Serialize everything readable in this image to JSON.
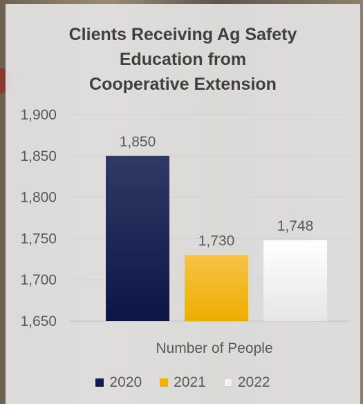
{
  "chart_data": {
    "type": "bar",
    "title_lines": [
      "Clients Receiving Ag Safety",
      "Education from",
      "Cooperative Extension"
    ],
    "categories": [
      "Number of People"
    ],
    "series": [
      {
        "name": "2020",
        "values": [
          1850
        ],
        "label": "1,850",
        "color": "#0d1b4f"
      },
      {
        "name": "2021",
        "values": [
          1730
        ],
        "label": "1,730",
        "color": "#f2b200"
      },
      {
        "name": "2022",
        "values": [
          1748
        ],
        "label": "1,748",
        "color": "#f4f4f4"
      }
    ],
    "ylim": [
      1650,
      1900
    ],
    "yticks": [
      1650,
      1700,
      1750,
      1800,
      1850,
      1900
    ],
    "ytick_labels": [
      "1,650",
      "1,700",
      "1,750",
      "1,800",
      "1,850",
      "1,900"
    ],
    "xlabel": "Number of People",
    "ylabel": "",
    "grid": true,
    "legend_position": "bottom"
  }
}
